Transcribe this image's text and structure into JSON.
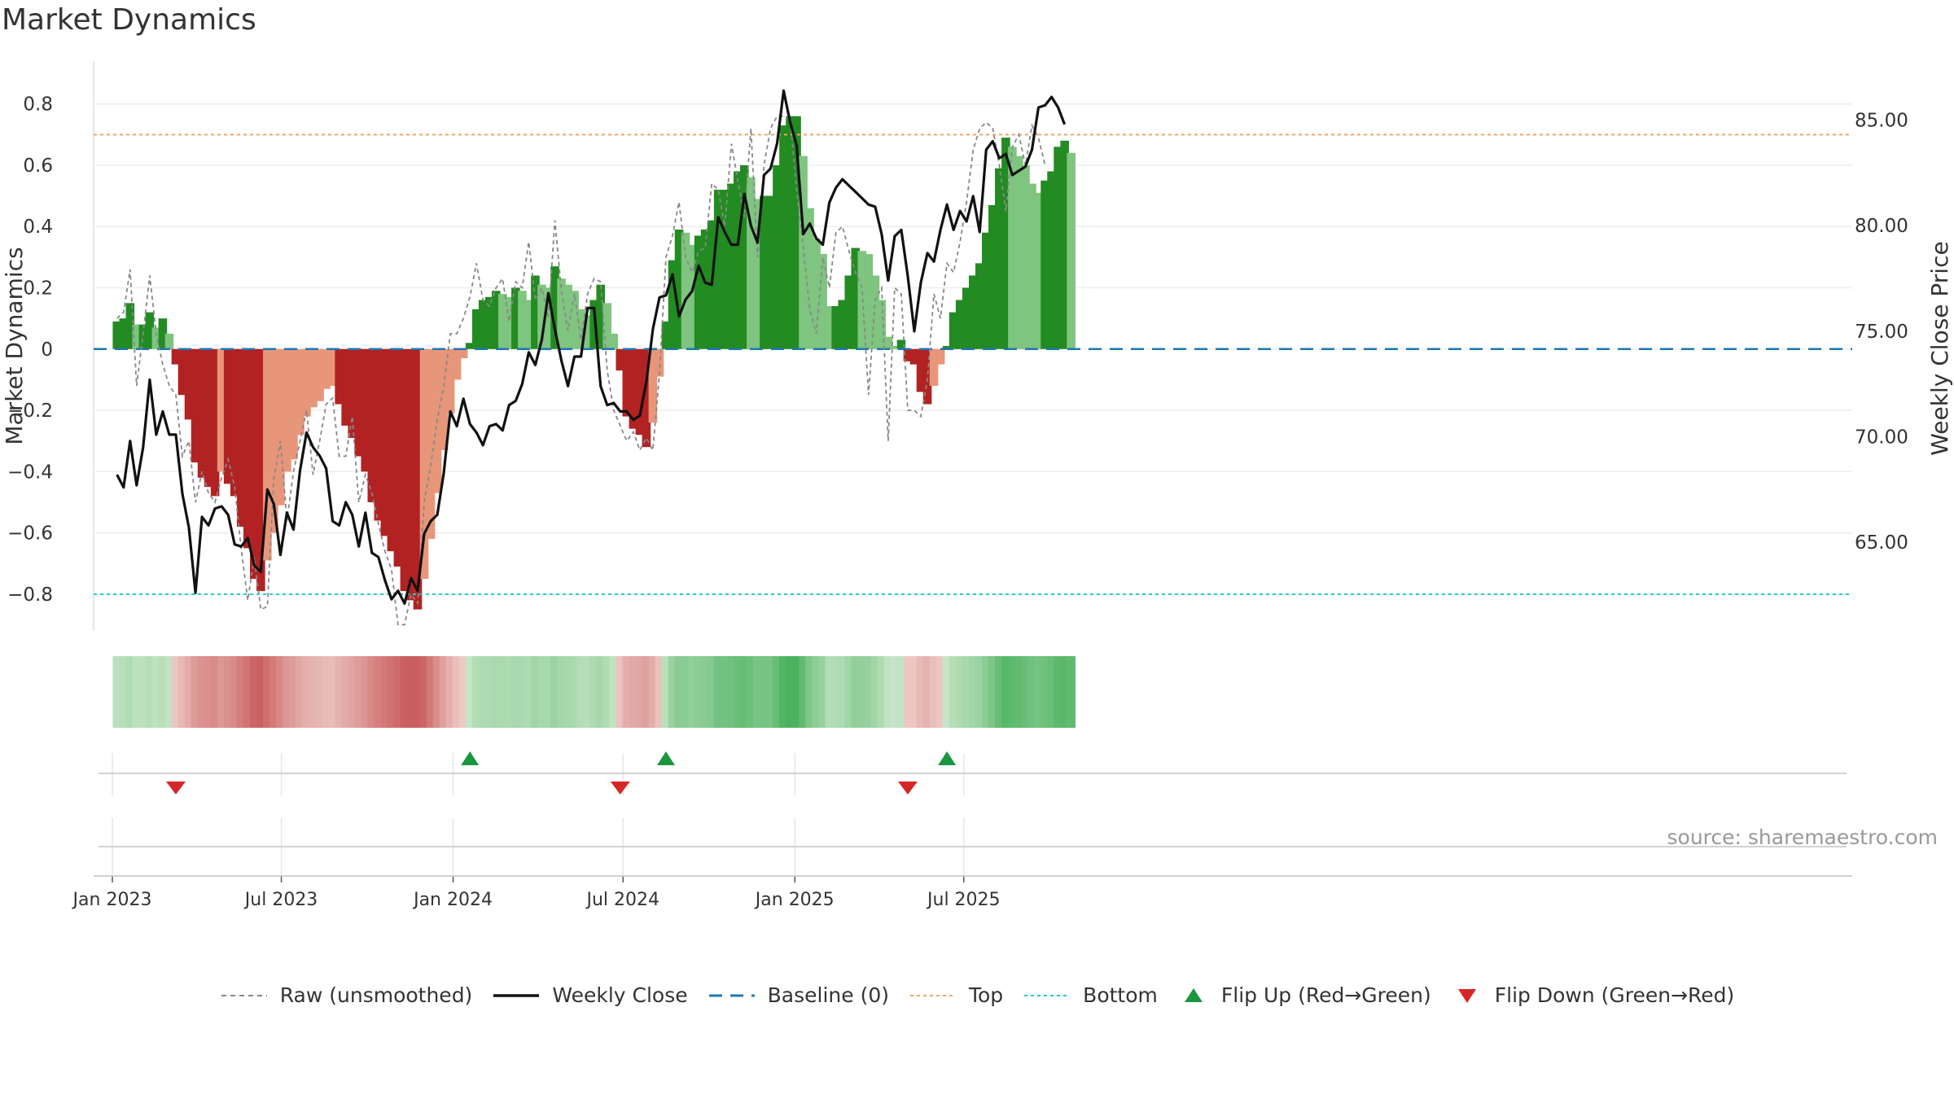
{
  "title": "Market Dynamics",
  "source": "source: sharemaestro.com",
  "chart_data": {
    "type": "bar",
    "ylabel_left": "Market Dynamics",
    "ylabel_right": "Weekly Close Price",
    "ylim_left": [
      -0.92,
      0.94
    ],
    "ylim_right": [
      60.8,
      87.8
    ],
    "left_ticks": [
      "0.8",
      "0.6",
      "0.4",
      "0.2",
      "0",
      "−0.2",
      "−0.4",
      "−0.6",
      "−0.8"
    ],
    "right_ticks": [
      "85.00",
      "80.00",
      "75.00",
      "70.00",
      "65.00"
    ],
    "x_ticks": [
      "Jan 2023",
      "Jul 2023",
      "Jan 2024",
      "Jul 2024",
      "Jan 2025",
      "Jul 2025"
    ],
    "start_date": "2023-01-06",
    "frequency": "weekly",
    "top_level": 0.7,
    "bottom_level": -0.8,
    "baseline": 0,
    "grid": true,
    "legend_position": "bottom",
    "colors": {
      "strong_up": "#228b22",
      "weak_up": "#7fc47f",
      "strong_down": "#b22222",
      "weak_down": "#e8967a",
      "raw": "#888888",
      "close": "#111111",
      "baseline": "#1f77b4",
      "top": "#f4a460",
      "bottom": "#20c9c9",
      "flip_up": "#1a9641",
      "flip_down": "#d62728"
    },
    "series": [
      {
        "name": "Market Dynamics",
        "values": [
          0.09,
          0.1,
          0.15,
          0.08,
          0.08,
          0.12,
          0.07,
          0.1,
          0.05,
          -0.05,
          -0.15,
          -0.23,
          -0.37,
          -0.42,
          -0.45,
          -0.48,
          -0.4,
          -0.44,
          -0.48,
          -0.58,
          -0.65,
          -0.75,
          -0.79,
          -0.69,
          -0.6,
          -0.51,
          -0.4,
          -0.36,
          -0.28,
          -0.22,
          -0.19,
          -0.17,
          -0.13,
          -0.12,
          -0.18,
          -0.25,
          -0.29,
          -0.35,
          -0.4,
          -0.5,
          -0.56,
          -0.61,
          -0.66,
          -0.71,
          -0.79,
          -0.82,
          -0.85,
          -0.75,
          -0.62,
          -0.47,
          -0.33,
          -0.21,
          -0.1,
          -0.03,
          0.02,
          0.13,
          0.16,
          0.17,
          0.19,
          0.18,
          0.17,
          0.2,
          0.19,
          0.16,
          0.24,
          0.21,
          0.2,
          0.27,
          0.23,
          0.21,
          0.19,
          0.13,
          0.11,
          0.16,
          0.21,
          0.15,
          0.05,
          -0.07,
          -0.22,
          -0.26,
          -0.28,
          -0.32,
          -0.24,
          -0.09,
          0.09,
          0.29,
          0.39,
          0.38,
          0.34,
          0.37,
          0.39,
          0.42,
          0.52,
          0.52,
          0.54,
          0.58,
          0.6,
          0.56,
          0.49,
          0.5,
          0.5,
          0.6,
          0.73,
          0.76,
          0.76,
          0.63,
          0.46,
          0.36,
          0.31,
          0.14,
          0.14,
          0.16,
          0.24,
          0.33,
          0.32,
          0.31,
          0.24,
          0.16,
          0.04,
          0.01,
          0.03,
          -0.04,
          -0.05,
          -0.14,
          -0.18,
          -0.12,
          -0.05,
          0.01,
          0.12,
          0.16,
          0.2,
          0.24,
          0.28,
          0.38,
          0.47,
          0.59,
          0.69,
          0.66,
          0.63,
          0.6,
          0.54,
          0.51,
          0.55,
          0.58,
          0.66,
          0.68,
          0.64
        ]
      },
      {
        "name": "Raw (unsmoothed)",
        "values": [
          0.1,
          0.12,
          0.26,
          -0.12,
          0.05,
          0.24,
          0.05,
          -0.05,
          -0.12,
          -0.15,
          -0.35,
          -0.3,
          -0.5,
          -0.4,
          -0.47,
          -0.5,
          -0.42,
          -0.36,
          -0.45,
          -0.65,
          -0.82,
          -0.68,
          -0.85,
          -0.84,
          -0.42,
          -0.3,
          -0.56,
          -0.4,
          -0.3,
          -0.2,
          -0.41,
          -0.3,
          -0.18,
          -0.16,
          -0.35,
          -0.35,
          -0.22,
          -0.5,
          -0.41,
          -0.47,
          -0.57,
          -0.66,
          -0.72,
          -0.9,
          -0.9,
          -0.8,
          -0.83,
          -0.5,
          -0.38,
          -0.23,
          -0.12,
          0.05,
          0.05,
          0.1,
          0.17,
          0.28,
          0.16,
          0.14,
          0.2,
          0.23,
          0.09,
          0.22,
          0.2,
          0.35,
          0.16,
          0.2,
          0.1,
          0.42,
          0.19,
          0.06,
          0.18,
          0.03,
          0.18,
          0.23,
          0.22,
          -0.07,
          -0.2,
          -0.25,
          -0.3,
          -0.27,
          -0.33,
          -0.29,
          -0.33,
          -0.08,
          0.3,
          0.37,
          0.48,
          0.3,
          0.25,
          0.32,
          0.33,
          0.54,
          0.52,
          0.4,
          0.67,
          0.55,
          0.43,
          0.72,
          0.3,
          0.6,
          0.72,
          0.76,
          0.76,
          0.75,
          0.52,
          0.33,
          0.13,
          0.05,
          0.3,
          0.2,
          0.38,
          0.4,
          0.32,
          0.25,
          0.2,
          -0.15,
          0.16,
          0.2,
          -0.3,
          0.2,
          0.18,
          -0.2,
          -0.2,
          -0.22,
          -0.1,
          0.18,
          0.1,
          0.28,
          0.25,
          0.35,
          0.48,
          0.65,
          0.72,
          0.74,
          0.72,
          0.6,
          0.45,
          0.66,
          0.7,
          0.6,
          0.73,
          0.69,
          0.6
        ]
      },
      {
        "name": "Weekly Close",
        "values": [
          68.2,
          67.6,
          69.8,
          67.7,
          69.5,
          72.7,
          70.1,
          71.2,
          70.1,
          70.1,
          67.3,
          65.7,
          62.6,
          66.2,
          65.8,
          66.6,
          66.7,
          66.3,
          64.9,
          64.8,
          65.2,
          63.9,
          63.6,
          67.5,
          66.8,
          64.4,
          66.4,
          65.6,
          68.4,
          70.2,
          69.5,
          69.1,
          68.5,
          66.0,
          65.8,
          66.9,
          66.3,
          64.8,
          66.4,
          64.5,
          64.3,
          63.2,
          62.3,
          62.7,
          62.1,
          63.3,
          62.7,
          65.4,
          66.0,
          66.3,
          68.3,
          71.2,
          70.5,
          71.8,
          70.6,
          70.2,
          69.6,
          70.5,
          70.6,
          70.3,
          71.5,
          71.7,
          72.5,
          74.0,
          73.4,
          74.6,
          76.8,
          75.1,
          73.6,
          72.4,
          73.8,
          73.8,
          76.1,
          76.1,
          72.4,
          71.5,
          71.6,
          71.2,
          71.2,
          70.8,
          71.0,
          72.6,
          75.1,
          76.6,
          76.7,
          77.7,
          75.7,
          76.5,
          76.9,
          78.1,
          77.3,
          77.2,
          80.4,
          79.7,
          79.1,
          79.1,
          81.5,
          80.0,
          79.2,
          82.4,
          82.7,
          83.9,
          86.4,
          84.9,
          83.8,
          79.6,
          80.1,
          79.4,
          79.1,
          81.1,
          81.8,
          82.2,
          81.9,
          81.6,
          81.3,
          81.0,
          80.9,
          79.6,
          77.4,
          79.5,
          79.8,
          77.6,
          75.0,
          77.3,
          78.7,
          78.3,
          79.8,
          81.0,
          79.8,
          80.7,
          80.2,
          81.4,
          79.7,
          83.6,
          84.0,
          83.2,
          83.4,
          82.4,
          82.6,
          82.8,
          83.6,
          85.6,
          85.7,
          86.1,
          85.6,
          84.8
        ]
      },
      {
        "name": "Baseline (0)"
      },
      {
        "name": "Top"
      },
      {
        "name": "Bottom"
      },
      {
        "name": "Flip Up (Red→Green)",
        "weeks": [
          54,
          84,
          127
        ]
      },
      {
        "name": "Flip Down (Green→Red)",
        "weeks": [
          9,
          77,
          121
        ]
      }
    ]
  }
}
